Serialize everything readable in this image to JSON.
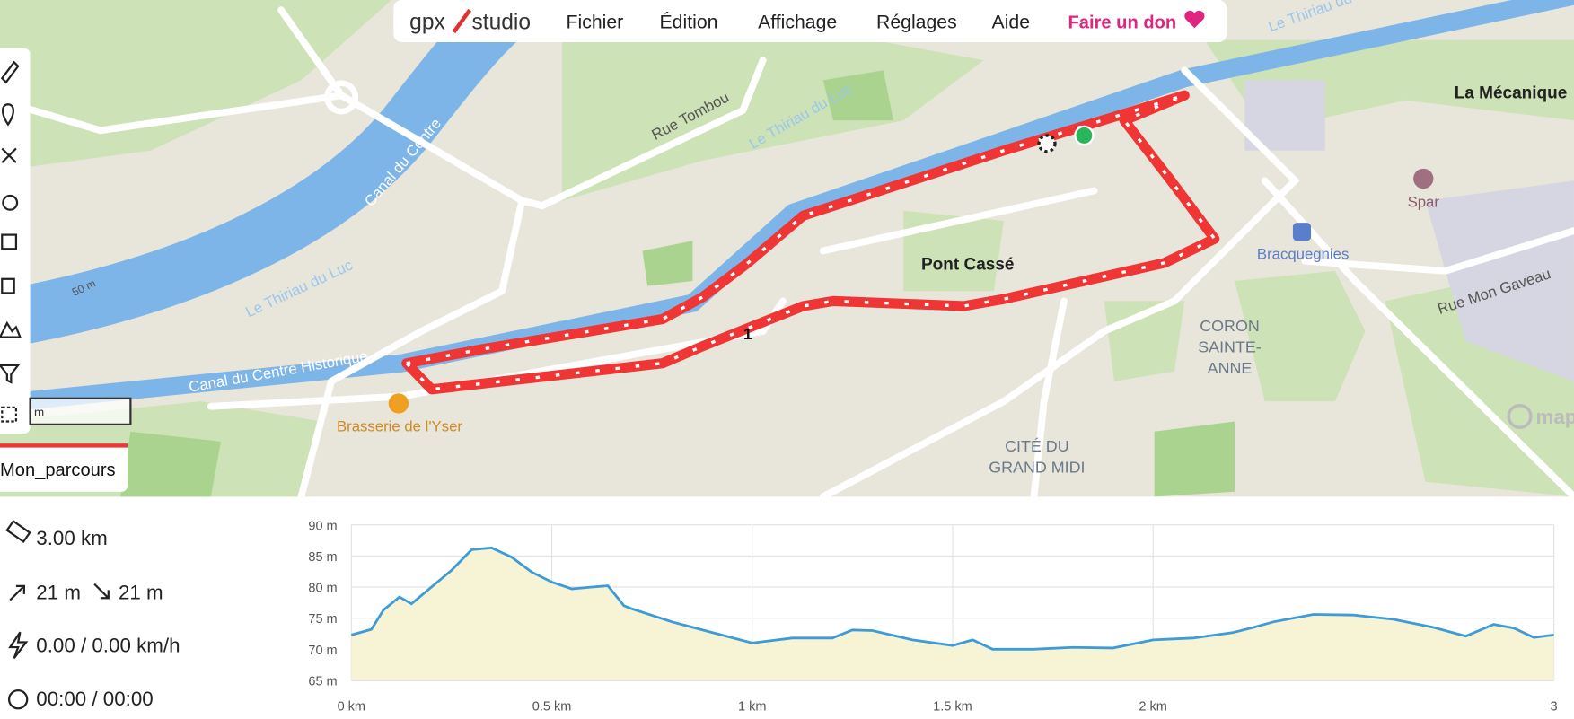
{
  "menu": {
    "logo_left": "gpx",
    "logo_right": "studio",
    "items": [
      "Fichier",
      "Édition",
      "Affichage",
      "Réglages",
      "Aide"
    ],
    "donate": "Faire un don"
  },
  "map": {
    "labels": [
      "Rue Tombou",
      "Canal du Centre",
      "Canal du Centre Historique",
      "Le Thiriau du Luc",
      "Le Thiriau du Luc",
      "Le Thiriau du Luc",
      "La Mécanique",
      "Spar",
      "Bracquegnies",
      "Pont Cassé",
      "Rue Mon Gaveau",
      "CORON",
      "SAINTE-",
      "ANNE",
      "CITÉ DU",
      "GRAND MIDI",
      "Brasserie de l'Yser",
      "50 m",
      "map"
    ],
    "scale": "m"
  },
  "track": {
    "name": "Mon_parcours",
    "marker": "1"
  },
  "stats": {
    "distance": "3.00 km",
    "elevation_gain": "21 m",
    "elevation_loss": "21 m",
    "speed": "0.00 / 0.00 km/h",
    "time": "00:00 / 00:00"
  },
  "elevation_chart": {
    "type": "line",
    "color": "#3d9bd8",
    "fill": "#f6f4d4",
    "grid": true,
    "x": [
      0,
      0.05,
      0.08,
      0.12,
      0.15,
      0.2,
      0.25,
      0.3,
      0.35,
      0.4,
      0.45,
      0.5,
      0.55,
      0.6,
      0.64,
      0.68,
      0.7,
      0.8,
      0.9,
      1.0,
      1.1,
      1.2,
      1.25,
      1.3,
      1.4,
      1.5,
      1.55,
      1.6,
      1.7,
      1.8,
      1.9,
      2.0,
      2.1,
      2.2,
      2.25,
      2.3,
      2.4,
      2.5,
      2.6,
      2.7,
      2.78,
      2.85,
      2.9,
      2.95,
      3.0
    ],
    "values": [
      72.3,
      73.2,
      76.3,
      78.4,
      77.3,
      80,
      82.7,
      86,
      86.3,
      84.8,
      82.4,
      80.8,
      79.7,
      80,
      80.2,
      77,
      76.5,
      74.4,
      72.7,
      71,
      71.8,
      71.8,
      73.1,
      73,
      71.5,
      70.6,
      71.5,
      70,
      70,
      70.3,
      70.2,
      71.5,
      71.8,
      72.7,
      73.5,
      74.4,
      75.6,
      75.5,
      74.8,
      73.5,
      72.1,
      74,
      73.4,
      71.9,
      72.3
    ],
    "xlim": [
      0,
      3
    ],
    "ylim": [
      65,
      90
    ],
    "xticks": [
      {
        "value": 0,
        "label": "0 km"
      },
      {
        "value": 0.5,
        "label": "0.5 km"
      },
      {
        "value": 1,
        "label": "1 km"
      },
      {
        "value": 1.5,
        "label": "1.5 km"
      },
      {
        "value": 2,
        "label": "2 km"
      },
      {
        "value": 3,
        "label": "3"
      }
    ],
    "yticks": [
      {
        "value": 65,
        "label": "65 m"
      },
      {
        "value": 70,
        "label": "70 m"
      },
      {
        "value": 75,
        "label": "75 m"
      },
      {
        "value": 80,
        "label": "80 m"
      },
      {
        "value": 85,
        "label": "85 m"
      },
      {
        "value": 90,
        "label": "90 m"
      }
    ]
  }
}
